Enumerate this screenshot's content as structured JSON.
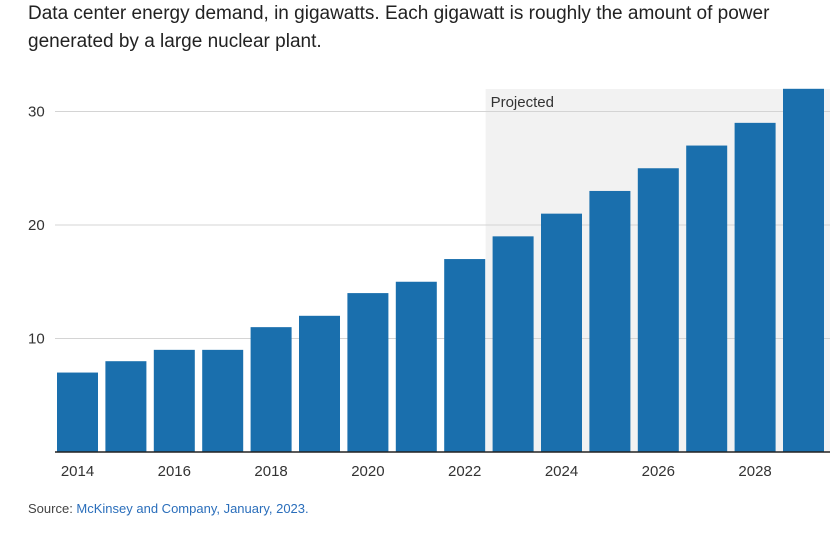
{
  "title_lines": [
    "Data center energy demand, in gigawatts. Each gigawatt is roughly the amount of power",
    "generated by a large nuclear plant."
  ],
  "source": {
    "prefix": "Source: ",
    "link_text": "McKinsey and Company, January, 2023."
  },
  "colors": {
    "bar": "#1a6fad",
    "projected_band": "#f2f2f2",
    "gridline": "#d4d4d4",
    "axis": "#222222",
    "link": "#2a6ebb"
  },
  "chart_data": {
    "type": "bar",
    "categories": [
      2014,
      2015,
      2016,
      2017,
      2018,
      2019,
      2020,
      2021,
      2022,
      2023,
      2024,
      2025,
      2026,
      2027,
      2028,
      2029
    ],
    "values": [
      7,
      8,
      9,
      9,
      11,
      12,
      14,
      15,
      17,
      19,
      21,
      23,
      25,
      27,
      29,
      32
    ],
    "x_tick_labels": [
      "2014",
      "2016",
      "2018",
      "2020",
      "2022",
      "2024",
      "2026",
      "2028"
    ],
    "y_ticks": [
      10,
      20,
      30
    ],
    "ylim": [
      0,
      32
    ],
    "grid": true,
    "projected": {
      "label": "Projected",
      "from": 2023
    }
  }
}
